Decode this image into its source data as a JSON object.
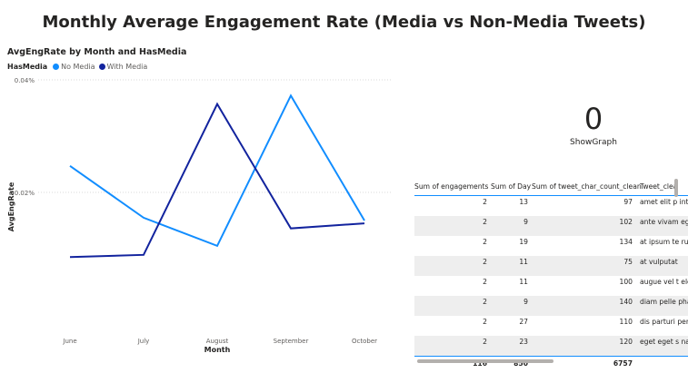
{
  "page_title": "Monthly Average Engagement Rate (Media vs Non-Media Tweets)",
  "chart": {
    "title": "AvgEngRate by Month and HasMedia",
    "legend_title": "HasMedia",
    "x_axis_title": "Month",
    "y_axis_title": "AvgEngRate"
  },
  "chart_data": {
    "type": "line",
    "title": "AvgEngRate by Month and HasMedia",
    "xlabel": "Month",
    "ylabel": "AvgEngRate",
    "categories": [
      "June",
      "July",
      "August",
      "September",
      "October"
    ],
    "y_ticks": [
      "0.02%",
      "0.04%"
    ],
    "y_tick_values": [
      0.02,
      0.04
    ],
    "ylim": [
      0.0,
      0.04
    ],
    "unit": "%",
    "grid": true,
    "legend_position": "top-left",
    "series": [
      {
        "name": "No Media",
        "color": "#118dff",
        "values": [
          0.0247,
          0.0155,
          0.0105,
          0.0372,
          0.015
        ]
      },
      {
        "name": "With Media",
        "color": "#12239e",
        "values": [
          0.0085,
          0.0089,
          0.0357,
          0.0136,
          0.0145
        ]
      }
    ]
  },
  "card": {
    "value": "0",
    "label": "ShowGraph"
  },
  "table": {
    "headers": [
      "Sum of engagements",
      "Sum of Day",
      "Sum of tweet_char_count_clean",
      "Tweet_clea"
    ],
    "rows": [
      [
        "2",
        "13",
        "97",
        "amet elit p interdum i"
      ],
      [
        "2",
        "9",
        "102",
        "ante vivam eget massa"
      ],
      [
        "2",
        "19",
        "134",
        "at ipsum te rutrum lob"
      ],
      [
        "2",
        "11",
        "75",
        "at vulputat"
      ],
      [
        "2",
        "11",
        "100",
        "augue vel t elementum"
      ],
      [
        "2",
        "9",
        "140",
        "diam pelle pharetra m"
      ],
      [
        "2",
        "27",
        "110",
        "dis parturi penatibus"
      ],
      [
        "2",
        "23",
        "120",
        "eget eget s nam dui pr"
      ]
    ],
    "totals": [
      "116",
      "850",
      "6757",
      ""
    ]
  }
}
